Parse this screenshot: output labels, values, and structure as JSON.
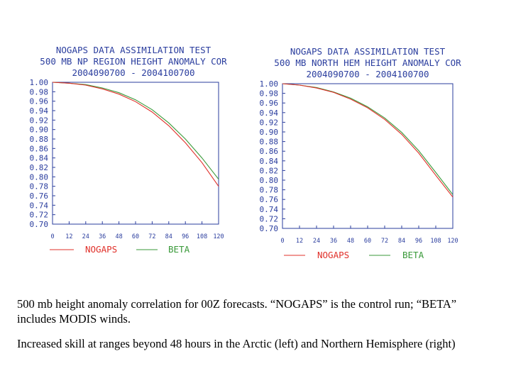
{
  "chart_data": [
    {
      "type": "line",
      "title": "NOGAPS DATA ASSIMILATION TEST",
      "subtitle": "500 MB NP REGION   HEIGHT ANOMALY COR",
      "date_range": "2004090700 - 2004100700",
      "x": [
        0,
        12,
        24,
        36,
        48,
        60,
        72,
        84,
        96,
        108,
        120
      ],
      "xticks": [
        "0",
        "12",
        "24",
        "36",
        "48",
        "60",
        "72",
        "84",
        "96",
        "108",
        "120"
      ],
      "xlim": [
        0,
        120
      ],
      "ylim": [
        0.7,
        1.0
      ],
      "yticks": [
        "1.00",
        "0.98",
        "0.96",
        "0.94",
        "0.92",
        "0.90",
        "0.88",
        "0.86",
        "0.84",
        "0.82",
        "0.80",
        "0.78",
        "0.76",
        "0.74",
        "0.72",
        "0.70"
      ],
      "grid": false,
      "legend_position": "bottom",
      "series": [
        {
          "name": "NOGAPS",
          "color": "#e0302a",
          "values": [
            1.0,
            0.998,
            0.994,
            0.986,
            0.975,
            0.959,
            0.937,
            0.908,
            0.872,
            0.83,
            0.78
          ]
        },
        {
          "name": "BETA",
          "color": "#3a9a3a",
          "values": [
            1.0,
            0.998,
            0.995,
            0.988,
            0.978,
            0.963,
            0.942,
            0.914,
            0.88,
            0.84,
            0.795
          ]
        }
      ]
    },
    {
      "type": "line",
      "title": "NOGAPS DATA ASSIMILATION TEST",
      "subtitle": "500 MB NORTH HEM   HEIGHT ANOMALY COR",
      "date_range": "2004090700 - 2004100700",
      "x": [
        0,
        12,
        24,
        36,
        48,
        60,
        72,
        84,
        96,
        108,
        120
      ],
      "xticks": [
        "0",
        "12",
        "24",
        "36",
        "48",
        "60",
        "72",
        "84",
        "96",
        "108",
        "120"
      ],
      "xlim": [
        0,
        120
      ],
      "ylim": [
        0.7,
        1.0
      ],
      "yticks": [
        "1.00",
        "0.98",
        "0.96",
        "0.94",
        "0.92",
        "0.90",
        "0.88",
        "0.86",
        "0.84",
        "0.82",
        "0.80",
        "0.78",
        "0.76",
        "0.74",
        "0.72",
        "0.70"
      ],
      "grid": false,
      "legend_position": "bottom",
      "series": [
        {
          "name": "NOGAPS",
          "color": "#e0302a",
          "values": [
            1.0,
            0.997,
            0.991,
            0.982,
            0.968,
            0.95,
            0.926,
            0.895,
            0.856,
            0.81,
            0.765
          ]
        },
        {
          "name": "BETA",
          "color": "#3a9a3a",
          "values": [
            1.0,
            0.997,
            0.992,
            0.983,
            0.97,
            0.952,
            0.929,
            0.899,
            0.861,
            0.816,
            0.77
          ]
        }
      ]
    }
  ],
  "captions": {
    "line1": "500 mb height anomaly correlation for 00Z forecasts. “NOGAPS” is the control run; “BETA” includes MODIS winds.",
    "line2": "Increased skill at ranges beyond 48 hours in the Arctic (left) and Northern Hemisphere (right)"
  }
}
